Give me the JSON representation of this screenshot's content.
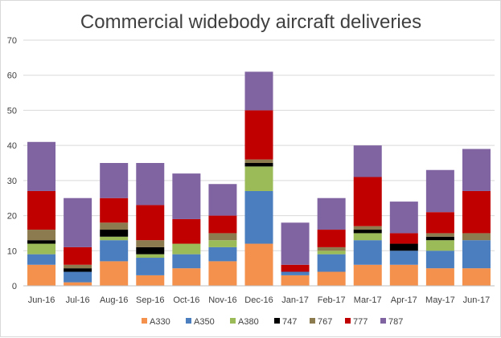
{
  "chart_data": {
    "type": "bar",
    "stacked": true,
    "title": "Commercial widebody aircraft deliveries",
    "xlabel": "",
    "ylabel": "",
    "ylim": [
      0,
      70
    ],
    "yticks": [
      0,
      10,
      20,
      30,
      40,
      50,
      60,
      70
    ],
    "grid": true,
    "legend_position": "bottom",
    "categories": [
      "Jun-16",
      "Jul-16",
      "Aug-16",
      "Sep-16",
      "Oct-16",
      "Nov-16",
      "Dec-16",
      "Jan-17",
      "Feb-17",
      "Mar-17",
      "Apr-17",
      "May-17",
      "Jun-17"
    ],
    "series": [
      {
        "name": "A330",
        "color": "#f4914c",
        "values": [
          6,
          1,
          7,
          3,
          5,
          7,
          12,
          3,
          4,
          6,
          6,
          5,
          5
        ]
      },
      {
        "name": "A350",
        "color": "#4a7ebf",
        "values": [
          3,
          3,
          6,
          5,
          4,
          4,
          15,
          1,
          5,
          7,
          4,
          5,
          8
        ]
      },
      {
        "name": "A380",
        "color": "#9bbb59",
        "values": [
          3,
          0,
          1,
          1,
          3,
          2,
          7,
          0,
          1,
          2,
          0,
          3,
          0
        ]
      },
      {
        "name": "747",
        "color": "#000000",
        "values": [
          1,
          1,
          2,
          2,
          0,
          0,
          1,
          0,
          0,
          1,
          2,
          1,
          0
        ]
      },
      {
        "name": "767",
        "color": "#8c7b4e",
        "values": [
          3,
          1,
          2,
          2,
          0,
          2,
          1,
          0,
          1,
          1,
          0,
          1,
          2
        ]
      },
      {
        "name": "777",
        "color": "#c00000",
        "values": [
          11,
          5,
          7,
          10,
          7,
          5,
          14,
          2,
          5,
          14,
          3,
          6,
          12
        ]
      },
      {
        "name": "787",
        "color": "#8064a2",
        "values": [
          14,
          14,
          10,
          12,
          13,
          9,
          11,
          12,
          9,
          9,
          9,
          12,
          12
        ]
      }
    ]
  }
}
